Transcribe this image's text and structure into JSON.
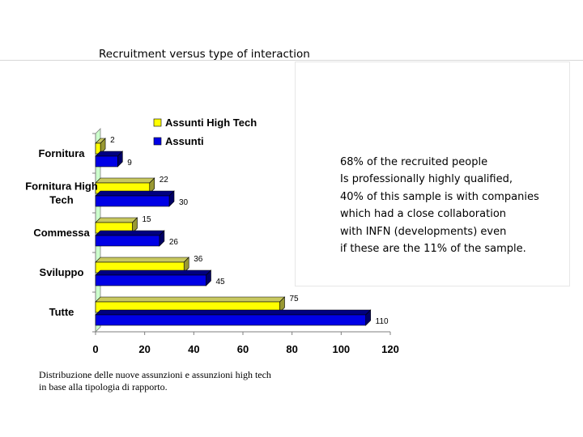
{
  "title": "Recruitment versus type of interaction",
  "info_lines": [
    "68% of the recruited people",
    "Is professionally highly qualified,",
    "40% of this sample is with companies",
    "which had  a close collaboration",
    "with INFN (developments) even",
    " if these are the 11% of the sample."
  ],
  "caption_lines": [
    "Distribuzione delle nuove assunzioni e assunzioni high tech",
    "in base alla tipologia di rapporto."
  ],
  "chart_data": {
    "type": "bar",
    "orientation": "horizontal",
    "categories": [
      [
        "Fornitura"
      ],
      [
        "Fornitura High",
        "Tech"
      ],
      [
        "Commessa"
      ],
      [
        "Sviluppo"
      ],
      [
        "Tutte"
      ]
    ],
    "series": [
      {
        "name": "Assunti High Tech",
        "values": [
          2,
          22,
          15,
          36,
          75
        ],
        "color": "#ffff00"
      },
      {
        "name": "Assunti",
        "values": [
          9,
          30,
          26,
          45,
          110
        ],
        "color": "#0000e6"
      }
    ],
    "xlim": [
      0,
      120
    ],
    "xticks": [
      "0",
      "20",
      "40",
      "60",
      "80",
      "100",
      "120"
    ],
    "legend": "top",
    "wall_color": "#ccffcc"
  }
}
